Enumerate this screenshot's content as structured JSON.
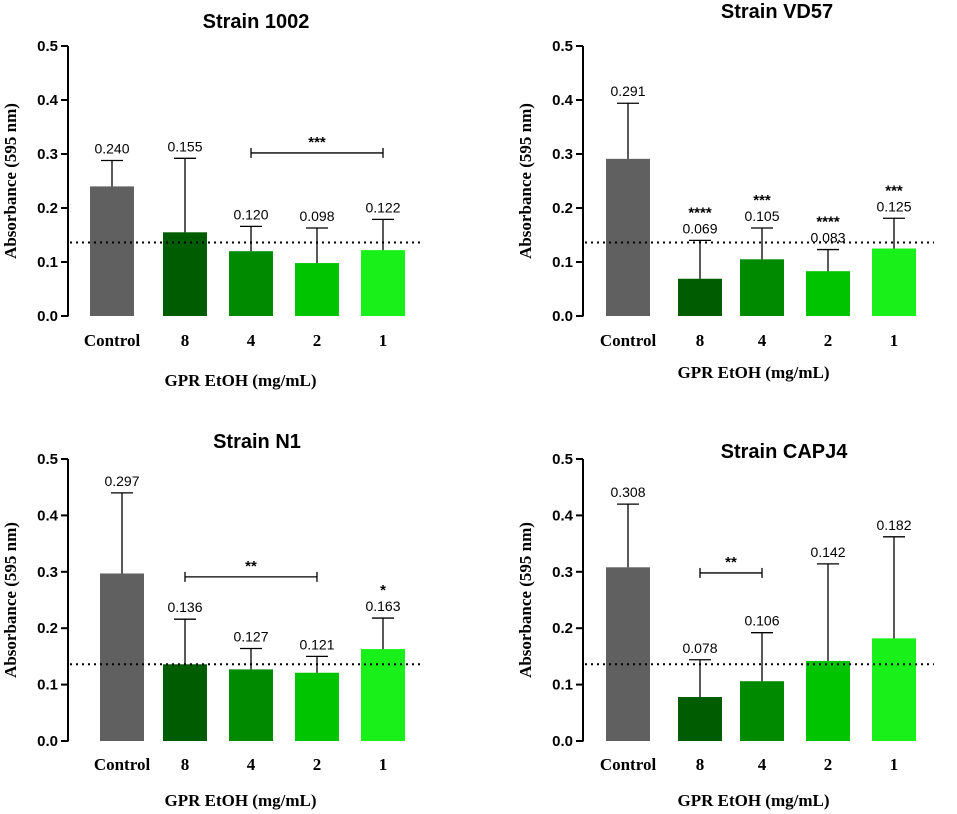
{
  "chart_data": [
    {
      "type": "bar",
      "title": "Strain 1002",
      "xlabel": "GPR EtOH (mg/mL)",
      "ylabel": "Absorbance (595 nm)",
      "ylim": [
        0,
        0.5
      ],
      "yticks": [
        "0.0",
        "0.1",
        "0.2",
        "0.3",
        "0.4",
        "0.5"
      ],
      "categories": [
        "Control",
        "8",
        "4",
        "2",
        "1"
      ],
      "values": [
        0.24,
        0.155,
        0.12,
        0.098,
        0.122
      ],
      "value_labels": [
        "0.240",
        "0.155",
        "0.120",
        "0.098",
        "0.122"
      ],
      "error_upper": [
        0.288,
        0.292,
        0.166,
        0.163,
        0.179
      ],
      "colors": [
        "#606060",
        "#005c00",
        "#008a00",
        "#00c400",
        "#19f019"
      ],
      "threshold": 0.136,
      "bar_stars": [
        "",
        "",
        "",
        "",
        ""
      ],
      "brackets": [
        {
          "from": 2,
          "to": 4,
          "y": 0.302,
          "label": "***"
        }
      ]
    },
    {
      "type": "bar",
      "title": "Strain VD57",
      "xlabel": "GPR EtOH (mg/mL)",
      "ylabel": "Absorbance (595 nm)",
      "ylim": [
        0,
        0.5
      ],
      "yticks": [
        "0.0",
        "0.1",
        "0.2",
        "0.3",
        "0.4",
        "0.5"
      ],
      "categories": [
        "Control",
        "8",
        "4",
        "2",
        "1"
      ],
      "values": [
        0.291,
        0.069,
        0.105,
        0.083,
        0.125
      ],
      "value_labels": [
        "0.291",
        "0.069",
        "0.105",
        "0.083",
        "0.125"
      ],
      "error_upper": [
        0.394,
        0.14,
        0.163,
        0.123,
        0.181
      ],
      "colors": [
        "#606060",
        "#005c00",
        "#008a00",
        "#00c400",
        "#19f019"
      ],
      "threshold": 0.136,
      "bar_stars": [
        "",
        "****",
        "***",
        "****",
        "***"
      ],
      "brackets": []
    },
    {
      "type": "bar",
      "title": "Strain N1",
      "xlabel": "GPR EtOH (mg/mL)",
      "ylabel": "Absorbance (595 nm)",
      "ylim": [
        0,
        0.5
      ],
      "yticks": [
        "0.0",
        "0.1",
        "0.2",
        "0.3",
        "0.4",
        "0.5"
      ],
      "categories": [
        "Control",
        "8",
        "4",
        "2",
        "1"
      ],
      "values": [
        0.297,
        0.136,
        0.127,
        0.121,
        0.163
      ],
      "value_labels": [
        "0.297",
        "0.136",
        "0.127",
        "0.121",
        "0.163"
      ],
      "error_upper": [
        0.44,
        0.216,
        0.164,
        0.15,
        0.218
      ],
      "colors": [
        "#606060",
        "#005c00",
        "#008a00",
        "#00c400",
        "#19f019"
      ],
      "threshold": 0.136,
      "bar_stars": [
        "",
        "",
        "",
        "",
        "*"
      ],
      "brackets": [
        {
          "from": 1,
          "to": 3,
          "y": 0.291,
          "label": "**"
        }
      ]
    },
    {
      "type": "bar",
      "title": "Strain CAPJ4",
      "xlabel": "GPR EtOH (mg/mL)",
      "ylabel": "Absorbance (595 nm)",
      "ylim": [
        0,
        0.5
      ],
      "yticks": [
        "0.0",
        "0.1",
        "0.2",
        "0.3",
        "0.4",
        "0.5"
      ],
      "categories": [
        "Control",
        "8",
        "4",
        "2",
        "1"
      ],
      "values": [
        0.308,
        0.078,
        0.106,
        0.142,
        0.182
      ],
      "value_labels": [
        "0.308",
        "0.078",
        "0.106",
        "0.142",
        "0.182"
      ],
      "error_upper": [
        0.42,
        0.144,
        0.192,
        0.314,
        0.362
      ],
      "colors": [
        "#606060",
        "#005c00",
        "#008a00",
        "#00c400",
        "#19f019"
      ],
      "threshold": 0.136,
      "bar_stars": [
        "",
        "",
        "",
        "",
        ""
      ],
      "brackets": [
        {
          "from": 1,
          "to": 2,
          "y": 0.298,
          "label": "**"
        }
      ]
    }
  ]
}
